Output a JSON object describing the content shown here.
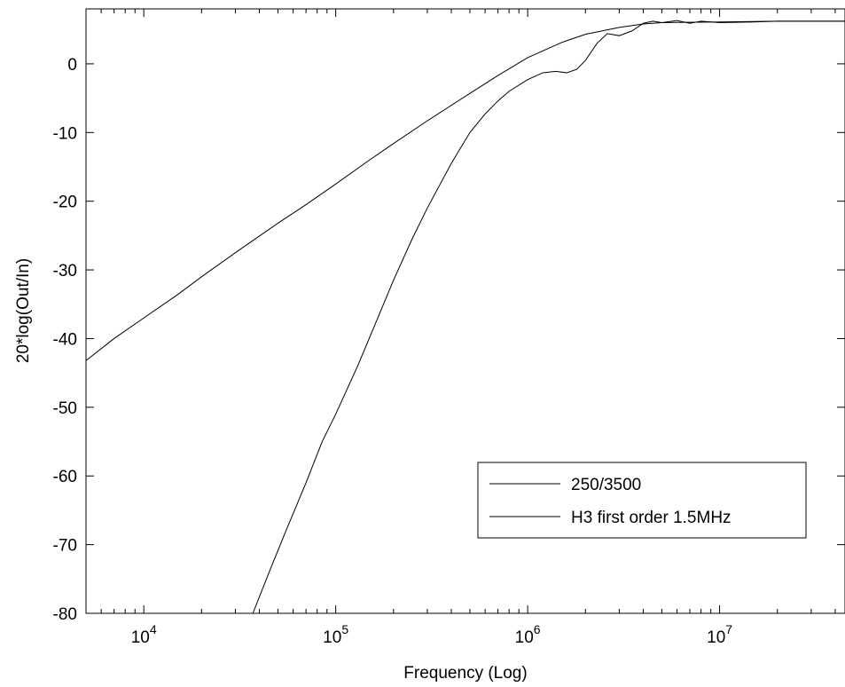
{
  "chart_data": {
    "type": "line",
    "title": "",
    "xlabel": "Frequency (Log)",
    "ylabel": "20*log(Out/In)",
    "xscale": "log",
    "xlim": [
      5000,
      45000000
    ],
    "ylim": [
      -80,
      8
    ],
    "grid": false,
    "legend_position": "lower-right",
    "x_ticks": [
      {
        "value": 10000,
        "base": "10",
        "exp": "4"
      },
      {
        "value": 100000,
        "base": "10",
        "exp": "5"
      },
      {
        "value": 1000000,
        "base": "10",
        "exp": "6"
      },
      {
        "value": 10000000,
        "base": "10",
        "exp": "7"
      }
    ],
    "y_ticks": [
      0,
      -10,
      -20,
      -30,
      -40,
      -50,
      -60,
      -70,
      -80
    ],
    "series": [
      {
        "name": "250/3500",
        "color": "#000000",
        "x": [
          5000,
          7000,
          10000,
          15000,
          20000,
          30000,
          50000,
          70000,
          100000,
          150000,
          200000,
          300000,
          500000,
          700000,
          1000000,
          1500000,
          2000000,
          3000000,
          4000000,
          5000000,
          10000000,
          20000000,
          45000000
        ],
        "y": [
          -43.2,
          -40.0,
          -37.0,
          -33.6,
          -31.0,
          -27.5,
          -23.2,
          -20.5,
          -17.5,
          -14.0,
          -11.6,
          -8.3,
          -4.3,
          -1.7,
          0.9,
          3.1,
          4.3,
          5.3,
          5.8,
          6.0,
          6.1,
          6.2,
          6.2
        ]
      },
      {
        "name": "H3 first order 1.5MHz",
        "color": "#000000",
        "x": [
          37000,
          45000,
          55000,
          70000,
          85000,
          100000,
          130000,
          160000,
          200000,
          250000,
          300000,
          400000,
          500000,
          600000,
          700000,
          800000,
          1000000,
          1200000,
          1400000,
          1600000,
          1800000,
          2000000,
          2300000,
          2600000,
          3000000,
          3500000,
          4000000,
          4500000,
          5000000,
          6000000,
          7000000,
          8000000,
          10000000,
          15000000,
          20000000,
          45000000
        ],
        "y": [
          -80.0,
          -74.0,
          -68.0,
          -61.0,
          -55.0,
          -51.0,
          -44.0,
          -38.0,
          -31.5,
          -25.5,
          -21.0,
          -14.5,
          -10.0,
          -7.3,
          -5.4,
          -4.0,
          -2.3,
          -1.3,
          -1.1,
          -1.3,
          -0.8,
          0.5,
          3.0,
          4.4,
          4.1,
          4.8,
          5.9,
          6.2,
          6.0,
          6.3,
          5.9,
          6.2,
          6.0,
          6.1,
          6.2,
          6.2
        ]
      }
    ]
  }
}
